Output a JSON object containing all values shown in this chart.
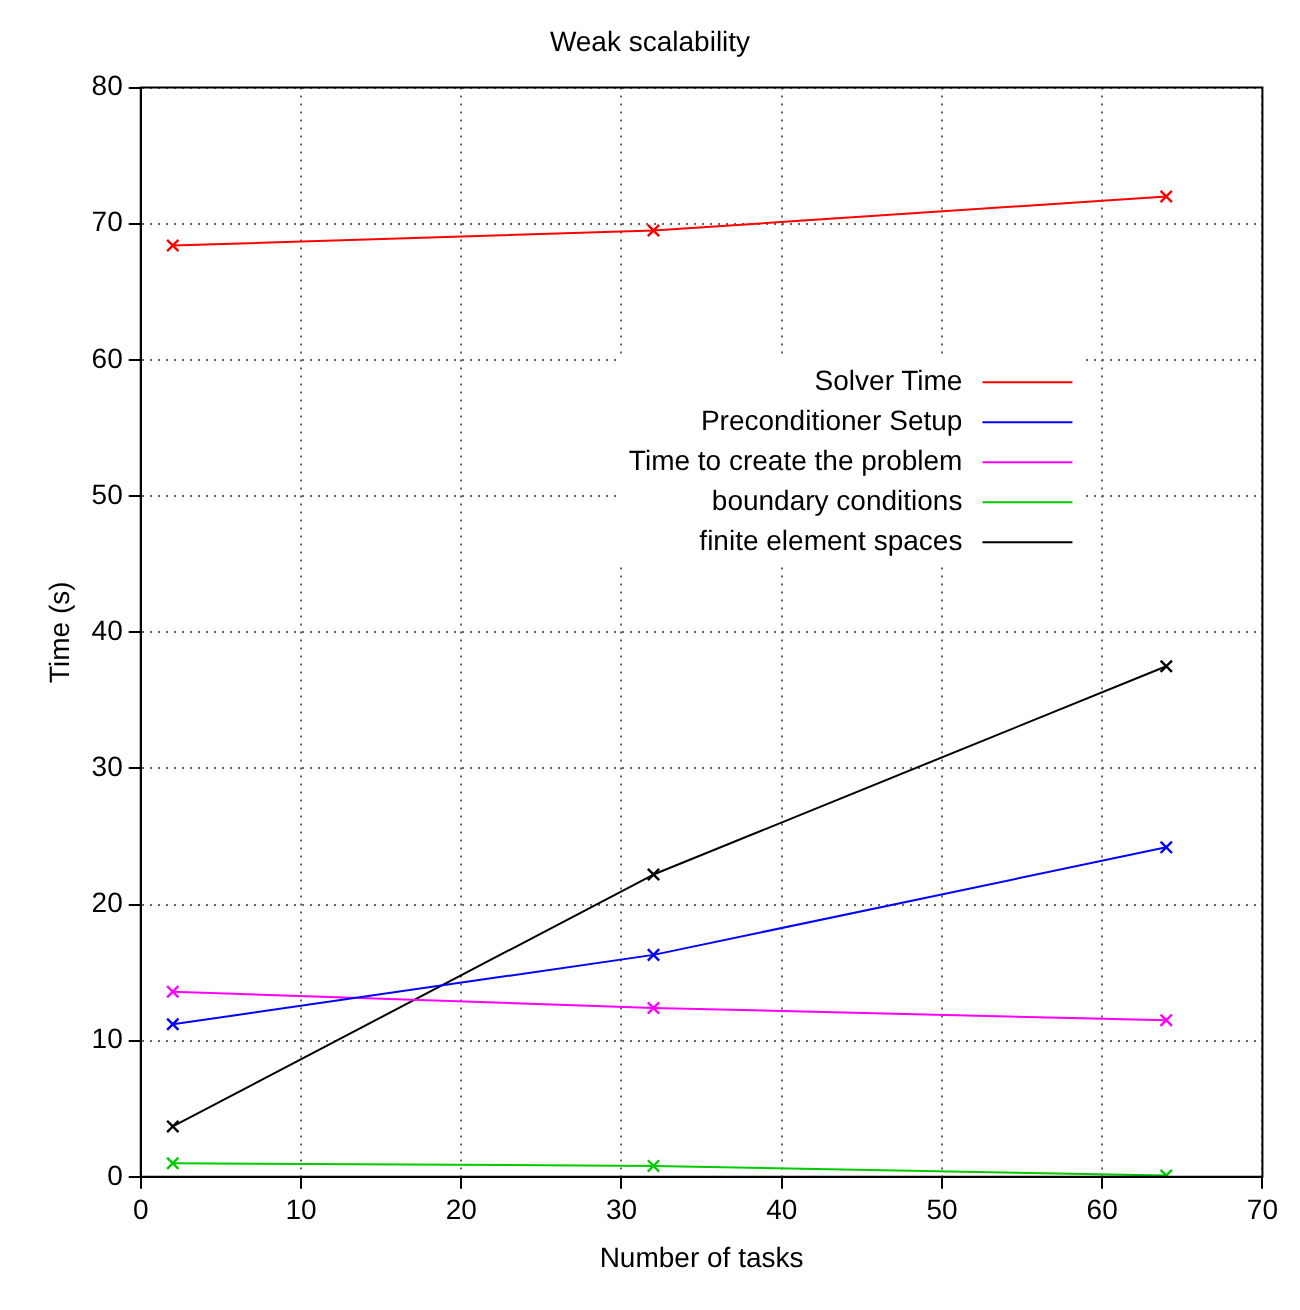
{
  "chart_data": {
    "type": "line",
    "title": "Weak scalability",
    "xlabel": "Number of tasks",
    "ylabel": "Time (s)",
    "x": [
      2,
      32,
      64
    ],
    "series": [
      {
        "name": "Solver Time",
        "color": "#ff0000",
        "values": [
          68.4,
          69.5,
          72.0
        ]
      },
      {
        "name": "Preconditioner Setup",
        "color": "#0000ff",
        "values": [
          11.2,
          16.3,
          24.2
        ]
      },
      {
        "name": "Time to create the problem",
        "color": "#ff00ff",
        "values": [
          13.6,
          12.4,
          11.5
        ]
      },
      {
        "name": "boundary conditions",
        "color": "#00cc00",
        "values": [
          1.0,
          0.8,
          0.1
        ]
      },
      {
        "name": "finite element spaces",
        "color": "#000000",
        "values": [
          3.7,
          22.2,
          37.5
        ]
      }
    ],
    "xlim": [
      0,
      70
    ],
    "xticks": [
      0,
      10,
      20,
      30,
      40,
      50,
      60,
      70
    ],
    "ylim": [
      0,
      80
    ],
    "yticks": [
      0,
      10,
      20,
      30,
      40,
      50,
      60,
      70,
      80
    ],
    "grid": true,
    "legend": "center right",
    "marker": "cross",
    "line_style": "solid"
  }
}
